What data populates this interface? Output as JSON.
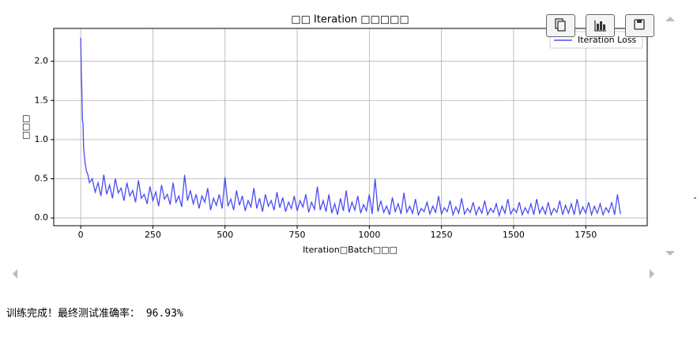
{
  "chart_data": {
    "type": "line",
    "title": "□□ Iteration □□□□□",
    "x_label": "Iteration□Batch□□□",
    "y_label": "□□□",
    "x": [
      0,
      2,
      4,
      6,
      8,
      10,
      15,
      20,
      25,
      30,
      40,
      50,
      60,
      70,
      80,
      90,
      100,
      110,
      120,
      130,
      140,
      150,
      160,
      170,
      180,
      190,
      200,
      210,
      220,
      230,
      240,
      250,
      260,
      270,
      280,
      290,
      300,
      310,
      320,
      330,
      340,
      350,
      360,
      370,
      380,
      390,
      400,
      410,
      420,
      430,
      440,
      450,
      460,
      470,
      480,
      490,
      500,
      510,
      520,
      530,
      540,
      550,
      560,
      570,
      580,
      590,
      600,
      610,
      620,
      630,
      640,
      650,
      660,
      670,
      680,
      690,
      700,
      710,
      720,
      730,
      740,
      750,
      760,
      770,
      780,
      790,
      800,
      810,
      820,
      830,
      840,
      850,
      860,
      870,
      880,
      890,
      900,
      910,
      920,
      930,
      940,
      950,
      960,
      970,
      980,
      990,
      1000,
      1010,
      1020,
      1030,
      1040,
      1050,
      1060,
      1070,
      1080,
      1090,
      1100,
      1110,
      1120,
      1130,
      1140,
      1150,
      1160,
      1170,
      1180,
      1190,
      1200,
      1210,
      1220,
      1230,
      1240,
      1250,
      1260,
      1270,
      1280,
      1290,
      1300,
      1310,
      1320,
      1330,
      1340,
      1350,
      1360,
      1370,
      1380,
      1390,
      1400,
      1410,
      1420,
      1430,
      1440,
      1450,
      1460,
      1470,
      1480,
      1490,
      1500,
      1510,
      1520,
      1530,
      1540,
      1550,
      1560,
      1570,
      1580,
      1590,
      1600,
      1610,
      1620,
      1630,
      1640,
      1650,
      1660,
      1670,
      1680,
      1690,
      1700,
      1710,
      1720,
      1730,
      1740,
      1750,
      1760,
      1770,
      1780,
      1790,
      1800,
      1810,
      1820,
      1830,
      1840,
      1850,
      1860,
      1870
    ],
    "series": [
      {
        "name": "Iteration Loss",
        "color": "#4b4bf5",
        "values": [
          2.3,
          1.9,
          1.6,
          1.25,
          1.2,
          0.9,
          0.7,
          0.6,
          0.55,
          0.45,
          0.5,
          0.33,
          0.45,
          0.28,
          0.55,
          0.3,
          0.42,
          0.25,
          0.5,
          0.32,
          0.38,
          0.22,
          0.45,
          0.28,
          0.35,
          0.2,
          0.48,
          0.25,
          0.3,
          0.18,
          0.4,
          0.22,
          0.33,
          0.15,
          0.42,
          0.24,
          0.3,
          0.17,
          0.45,
          0.2,
          0.28,
          0.14,
          0.55,
          0.22,
          0.35,
          0.18,
          0.3,
          0.12,
          0.28,
          0.2,
          0.38,
          0.1,
          0.25,
          0.16,
          0.3,
          0.12,
          0.52,
          0.15,
          0.24,
          0.1,
          0.35,
          0.16,
          0.28,
          0.09,
          0.22,
          0.14,
          0.38,
          0.12,
          0.25,
          0.08,
          0.3,
          0.15,
          0.22,
          0.1,
          0.33,
          0.13,
          0.26,
          0.08,
          0.2,
          0.12,
          0.28,
          0.09,
          0.22,
          0.14,
          0.3,
          0.07,
          0.2,
          0.11,
          0.4,
          0.1,
          0.22,
          0.08,
          0.3,
          0.06,
          0.18,
          0.04,
          0.25,
          0.09,
          0.35,
          0.07,
          0.2,
          0.1,
          0.28,
          0.06,
          0.17,
          0.09,
          0.3,
          0.05,
          0.5,
          0.08,
          0.22,
          0.07,
          0.15,
          0.04,
          0.26,
          0.08,
          0.18,
          0.05,
          0.32,
          0.07,
          0.15,
          0.06,
          0.24,
          0.04,
          0.12,
          0.08,
          0.2,
          0.05,
          0.15,
          0.07,
          0.28,
          0.05,
          0.13,
          0.08,
          0.22,
          0.04,
          0.14,
          0.06,
          0.25,
          0.05,
          0.12,
          0.07,
          0.2,
          0.04,
          0.14,
          0.06,
          0.22,
          0.04,
          0.12,
          0.07,
          0.18,
          0.03,
          0.15,
          0.06,
          0.24,
          0.05,
          0.12,
          0.07,
          0.2,
          0.04,
          0.13,
          0.06,
          0.18,
          0.04,
          0.24,
          0.06,
          0.14,
          0.05,
          0.2,
          0.04,
          0.12,
          0.07,
          0.22,
          0.04,
          0.16,
          0.06,
          0.18,
          0.04,
          0.24,
          0.05,
          0.14,
          0.06,
          0.2,
          0.04,
          0.15,
          0.06,
          0.18,
          0.04,
          0.13,
          0.07,
          0.2,
          0.04,
          0.3,
          0.05
        ]
      }
    ],
    "xlim": [
      -93.5,
      1963
    ],
    "ylim": [
      -0.1,
      2.42
    ],
    "xticks": [
      0,
      250,
      500,
      750,
      1000,
      1250,
      1500,
      1750
    ],
    "yticks": [
      {
        "value": 0,
        "label": "0.0"
      },
      {
        "value": 0.5,
        "label": "0.5"
      },
      {
        "value": 1,
        "label": "1.0"
      },
      {
        "value": 1.5,
        "label": "1.5"
      },
      {
        "value": 2,
        "label": "2.0"
      }
    ],
    "grid": true,
    "legend": "upper right"
  },
  "output_text": "训练完成！最终测试准确率： 96.93%"
}
